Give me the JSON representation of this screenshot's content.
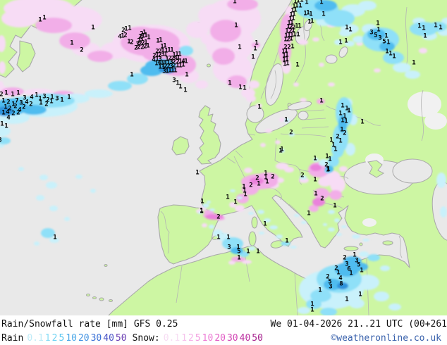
{
  "header": {
    "title": "Rain/Snowfall rate [mm] GFS 0.25",
    "datetime": "We 01-04-2026 21..21 UTC (00+261"
  },
  "legend": {
    "rain_label": "Rain",
    "rain": [
      {
        "value": "0.1",
        "color": "#BEEBF8"
      },
      {
        "value": "1",
        "color": "#86DCF6"
      },
      {
        "value": "2",
        "color": "#6FD3F3"
      },
      {
        "value": "5",
        "color": "#58C5EF"
      },
      {
        "value": "10",
        "color": "#4BA8E8"
      },
      {
        "value": "20",
        "color": "#4192E2"
      },
      {
        "value": "30",
        "color": "#3A70D6"
      },
      {
        "value": "40",
        "color": "#4C55C6"
      },
      {
        "value": "50",
        "color": "#6B40B4"
      }
    ],
    "snow_label": "Snow:",
    "snow": [
      {
        "value": "0.1",
        "color": "#F7DCF3"
      },
      {
        "value": "1",
        "color": "#F6C2EC"
      },
      {
        "value": "2",
        "color": "#F5B2E9"
      },
      {
        "value": "5",
        "color": "#F29ADF"
      },
      {
        "value": "10",
        "color": "#EC7BD5"
      },
      {
        "value": "20",
        "color": "#E25FC6"
      },
      {
        "value": "30",
        "color": "#D246B4"
      },
      {
        "value": "40",
        "color": "#BC31A0"
      },
      {
        "value": "50",
        "color": "#A5208D"
      }
    ],
    "copyright": "©weatheronline.co.uk"
  },
  "map": {
    "colors": {
      "land": "#CDF6A3",
      "sea": "#E9E9E9",
      "border": "#A9A9A9",
      "rain_light": "#C9F1FB",
      "rain_mid": "#8FE0F8",
      "rain_strong": "#4FBCEF",
      "rain_intense": "#2E93DC",
      "snow_light": "#F7DCF5",
      "snow_mid": "#F2AEE8",
      "snow_strong": "#EA82DC",
      "value_text": "#000000"
    },
    "values": [
      [
        57,
        29,
        1
      ],
      [
        63,
        26,
        1
      ],
      [
        102,
        62,
        1
      ],
      [
        116,
        72,
        2
      ],
      [
        132,
        40,
        1
      ],
      [
        187,
        107,
        1
      ],
      [
        175,
        44,
        2
      ],
      [
        179,
        42,
        1
      ],
      [
        184,
        41,
        1
      ],
      [
        170,
        53,
        4
      ],
      [
        174,
        52,
        1
      ],
      [
        178,
        51,
        2
      ],
      [
        183,
        60,
        1
      ],
      [
        187,
        61,
        2
      ],
      [
        201,
        49,
        2
      ],
      [
        205,
        47,
        1
      ],
      [
        199,
        53,
        2
      ],
      [
        203,
        52,
        1
      ],
      [
        207,
        51,
        1
      ],
      [
        211,
        54,
        1
      ],
      [
        197,
        59,
        2
      ],
      [
        201,
        57,
        3
      ],
      [
        224,
        59,
        1
      ],
      [
        228,
        58,
        1
      ],
      [
        195,
        64,
        3
      ],
      [
        199,
        63,
        2
      ],
      [
        203,
        62,
        2
      ],
      [
        207,
        61,
        1
      ],
      [
        230,
        67,
        1
      ],
      [
        234,
        66,
        1
      ],
      [
        193,
        69,
        2
      ],
      [
        197,
        68,
        2
      ],
      [
        202,
        68,
        2
      ],
      [
        206,
        67,
        2
      ],
      [
        210,
        66,
        1
      ],
      [
        236,
        73,
        1
      ],
      [
        240,
        72,
        1
      ],
      [
        244,
        72,
        1
      ],
      [
        223,
        74,
        2
      ],
      [
        227,
        74,
        2
      ],
      [
        231,
        73,
        1
      ],
      [
        219,
        80,
        2
      ],
      [
        223,
        79,
        1
      ],
      [
        227,
        79,
        2
      ],
      [
        231,
        78,
        3
      ],
      [
        235,
        78,
        1
      ],
      [
        247,
        79,
        1
      ],
      [
        251,
        78,
        1
      ],
      [
        255,
        78,
        1
      ],
      [
        218,
        86,
        4
      ],
      [
        223,
        85,
        1
      ],
      [
        227,
        85,
        3
      ],
      [
        237,
        85,
        1
      ],
      [
        241,
        84,
        2
      ],
      [
        245,
        84,
        2
      ],
      [
        249,
        83,
        4
      ],
      [
        253,
        83,
        1
      ],
      [
        222,
        91,
        1
      ],
      [
        226,
        90,
        4
      ],
      [
        230,
        90,
        3
      ],
      [
        234,
        90,
        3
      ],
      [
        239,
        90,
        1
      ],
      [
        243,
        89,
        3
      ],
      [
        247,
        89,
        2
      ],
      [
        252,
        89,
        2
      ],
      [
        256,
        88,
        1
      ],
      [
        260,
        88,
        4
      ],
      [
        264,
        88,
        1
      ],
      [
        227,
        96,
        1
      ],
      [
        231,
        96,
        3
      ],
      [
        235,
        95,
        2
      ],
      [
        239,
        95,
        2
      ],
      [
        243,
        95,
        3
      ],
      [
        247,
        94,
        2
      ],
      [
        252,
        94,
        1
      ],
      [
        256,
        94,
        1
      ],
      [
        260,
        93,
        1
      ],
      [
        233,
        102,
        3
      ],
      [
        237,
        102,
        1
      ],
      [
        241,
        101,
        1
      ],
      [
        245,
        101,
        1
      ],
      [
        249,
        101,
        1
      ],
      [
        265,
        107,
        1
      ],
      [
        247,
        115,
        3
      ],
      [
        252,
        119,
        1
      ],
      [
        256,
        124,
        1
      ],
      [
        263,
        129,
        1
      ],
      [
        2,
        135,
        2
      ],
      [
        9,
        133,
        1
      ],
      [
        18,
        135,
        1
      ],
      [
        26,
        133,
        1
      ],
      [
        35,
        140,
        3
      ],
      [
        45,
        139,
        4
      ],
      [
        52,
        136,
        1
      ],
      [
        57,
        141,
        1
      ],
      [
        63,
        138,
        3
      ],
      [
        68,
        143,
        2
      ],
      [
        74,
        139,
        1
      ],
      [
        81,
        141,
        3
      ],
      [
        88,
        143,
        1
      ],
      [
        98,
        139,
        1
      ],
      [
        5,
        144,
        1
      ],
      [
        12,
        146,
        2
      ],
      [
        19,
        149,
        1
      ],
      [
        24,
        144,
        7
      ],
      [
        30,
        147,
        3
      ],
      [
        38,
        146,
        4
      ],
      [
        44,
        149,
        2
      ],
      [
        58,
        147,
        1
      ],
      [
        66,
        149,
        2
      ],
      [
        73,
        145,
        1
      ],
      [
        8,
        153,
        1
      ],
      [
        14,
        155,
        2
      ],
      [
        22,
        152,
        2
      ],
      [
        28,
        157,
        4
      ],
      [
        34,
        153,
        2
      ],
      [
        5,
        161,
        1
      ],
      [
        11,
        160,
        4
      ],
      [
        19,
        162,
        2
      ],
      [
        26,
        161,
        2
      ],
      [
        12,
        168,
        4
      ],
      [
        3,
        177,
        1
      ],
      [
        9,
        180,
        1
      ],
      [
        0,
        200,
        3
      ],
      [
        78,
        338,
        1
      ],
      [
        333,
        3,
        1
      ],
      [
        419,
        3,
        1
      ],
      [
        423,
        2,
        1
      ],
      [
        428,
        1,
        1
      ],
      [
        435,
        4,
        1
      ],
      [
        456,
        4,
        1
      ],
      [
        417,
        10,
        1
      ],
      [
        421,
        9,
        1
      ],
      [
        426,
        9,
        1
      ],
      [
        415,
        16,
        1
      ],
      [
        419,
        15,
        1
      ],
      [
        433,
        20,
        1
      ],
      [
        437,
        19,
        1
      ],
      [
        441,
        21,
        1
      ],
      [
        413,
        22,
        1
      ],
      [
        417,
        21,
        1
      ],
      [
        459,
        21,
        1
      ],
      [
        412,
        28,
        1
      ],
      [
        416,
        27,
        1
      ],
      [
        439,
        32,
        1
      ],
      [
        443,
        31,
        1
      ],
      [
        410,
        34,
        1
      ],
      [
        414,
        33,
        1
      ],
      [
        335,
        37,
        1
      ],
      [
        409,
        39,
        1
      ],
      [
        413,
        39,
        2
      ],
      [
        417,
        40,
        2
      ],
      [
        421,
        38,
        1
      ],
      [
        425,
        38,
        1
      ],
      [
        407,
        45,
        1
      ],
      [
        412,
        45,
        2
      ],
      [
        416,
        44,
        1
      ],
      [
        406,
        52,
        1
      ],
      [
        410,
        51,
        1
      ],
      [
        414,
        51,
        1
      ],
      [
        418,
        50,
        1
      ],
      [
        423,
        50,
        1
      ],
      [
        405,
        57,
        1
      ],
      [
        409,
        57,
        2
      ],
      [
        413,
        56,
        1
      ],
      [
        364,
        62,
        1
      ],
      [
        362,
        70,
        1
      ],
      [
        340,
        68,
        1
      ],
      [
        405,
        68,
        2
      ],
      [
        410,
        68,
        2
      ],
      [
        415,
        67,
        1
      ],
      [
        402,
        74,
        1
      ],
      [
        406,
        73,
        1
      ],
      [
        403,
        80,
        1
      ],
      [
        407,
        79,
        1
      ],
      [
        359,
        82,
        1
      ],
      [
        403,
        86,
        1
      ],
      [
        407,
        85,
        1
      ],
      [
        404,
        92,
        1
      ],
      [
        408,
        91,
        1
      ],
      [
        422,
        93,
        1
      ],
      [
        326,
        119,
        1
      ],
      [
        341,
        125,
        1
      ],
      [
        347,
        126,
        1
      ],
      [
        368,
        153,
        1
      ],
      [
        492,
        40,
        1
      ],
      [
        497,
        43,
        1
      ],
      [
        483,
        61,
        1
      ],
      [
        491,
        59,
        1
      ],
      [
        536,
        34,
        1
      ],
      [
        537,
        43,
        1
      ],
      [
        527,
        47,
        3
      ],
      [
        533,
        51,
        5
      ],
      [
        539,
        55,
        3
      ],
      [
        545,
        60,
        5
      ],
      [
        548,
        52,
        1
      ],
      [
        551,
        61,
        1
      ],
      [
        549,
        74,
        1
      ],
      [
        554,
        77,
        1
      ],
      [
        559,
        81,
        1
      ],
      [
        587,
        90,
        1
      ],
      [
        595,
        38,
        1
      ],
      [
        601,
        41,
        1
      ],
      [
        603,
        52,
        1
      ],
      [
        618,
        37,
        1
      ],
      [
        625,
        40,
        1
      ],
      [
        456,
        144,
        1
      ],
      [
        406,
        171,
        1
      ],
      [
        413,
        189,
        2
      ],
      [
        400,
        213,
        1
      ],
      [
        486,
        151,
        1
      ],
      [
        492,
        155,
        1
      ],
      [
        495,
        158,
        1
      ],
      [
        483,
        162,
        1
      ],
      [
        489,
        166,
        1
      ],
      [
        486,
        172,
        1
      ],
      [
        491,
        173,
        1
      ],
      [
        514,
        174,
        1
      ],
      [
        485,
        185,
        1
      ],
      [
        489,
        190,
        2
      ],
      [
        479,
        195,
        2
      ],
      [
        483,
        201,
        1
      ],
      [
        470,
        200,
        1
      ],
      [
        473,
        207,
        1
      ],
      [
        476,
        213,
        1
      ],
      [
        464,
        223,
        1
      ],
      [
        447,
        226,
        1
      ],
      [
        468,
        227,
        1
      ],
      [
        463,
        235,
        2
      ],
      [
        466,
        241,
        1
      ],
      [
        398,
        215,
        1
      ],
      [
        429,
        250,
        2
      ],
      [
        465,
        242,
        1
      ],
      [
        377,
        247,
        1
      ],
      [
        387,
        252,
        2
      ],
      [
        365,
        254,
        2
      ],
      [
        377,
        253,
        1
      ],
      [
        356,
        264,
        2
      ],
      [
        367,
        262,
        1
      ],
      [
        379,
        259,
        1
      ],
      [
        346,
        266,
        1
      ],
      [
        347,
        272,
        1
      ],
      [
        348,
        277,
        1
      ],
      [
        323,
        281,
        1
      ],
      [
        334,
        288,
        1
      ],
      [
        280,
        246,
        1
      ],
      [
        286,
        300,
        1
      ],
      [
        447,
        256,
        1
      ],
      [
        448,
        276,
        1
      ],
      [
        457,
        283,
        2
      ],
      [
        475,
        293,
        1
      ],
      [
        438,
        304,
        1
      ],
      [
        376,
        319,
        1
      ],
      [
        407,
        343,
        1
      ],
      [
        287,
        287,
        1
      ],
      [
        286,
        301,
        1
      ],
      [
        310,
        309,
        2
      ],
      [
        310,
        338,
        1
      ],
      [
        324,
        338,
        1
      ],
      [
        325,
        352,
        3
      ],
      [
        338,
        352,
        1
      ],
      [
        339,
        358,
        5
      ],
      [
        352,
        358,
        1
      ],
      [
        366,
        358,
        1
      ],
      [
        339,
        367,
        1
      ],
      [
        503,
        363,
        1
      ],
      [
        489,
        367,
        2
      ],
      [
        506,
        371,
        3
      ],
      [
        492,
        376,
        3
      ],
      [
        509,
        377,
        5
      ],
      [
        495,
        383,
        6
      ],
      [
        477,
        382,
        2
      ],
      [
        513,
        385,
        1
      ],
      [
        480,
        388,
        1
      ],
      [
        465,
        394,
        2
      ],
      [
        483,
        396,
        4
      ],
      [
        498,
        389,
        1
      ],
      [
        468,
        401,
        5
      ],
      [
        484,
        404,
        8
      ],
      [
        469,
        408,
        3
      ],
      [
        454,
        413,
        1
      ],
      [
        511,
        419,
        1
      ],
      [
        492,
        426,
        1
      ],
      [
        443,
        433,
        1
      ],
      [
        443,
        441,
        1
      ]
    ]
  }
}
